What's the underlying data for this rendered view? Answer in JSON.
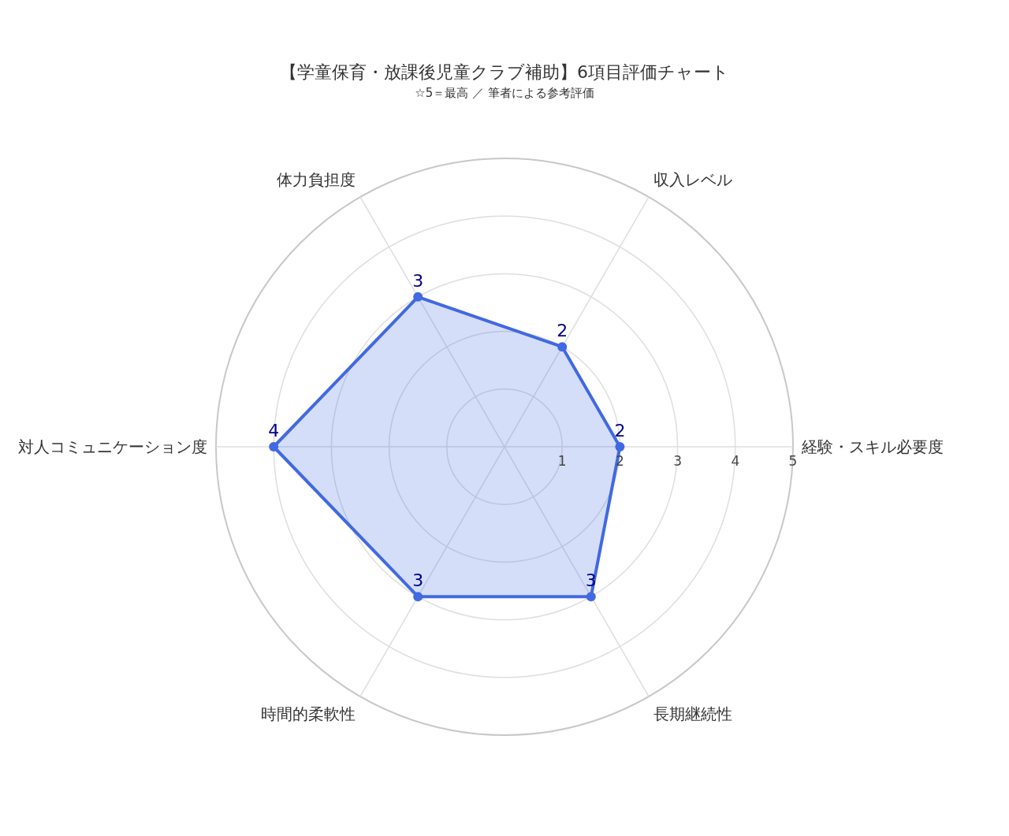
{
  "chart_data": {
    "type": "radar",
    "title": "【学童保育・放課後児童クラブ補助】6項目評価チャート",
    "subtitle": "☆5＝最高 ／ 筆者による参考評価",
    "categories": [
      "収入レベル",
      "経験・スキル必要度",
      "長期継続性",
      "時間的柔軟性",
      "対人コミュニケーション度",
      "体力負担度"
    ],
    "series": [
      {
        "color": "#4169e1",
        "values": [
          2,
          2,
          3,
          3,
          4,
          3
        ]
      }
    ],
    "ylim": [
      0,
      5
    ],
    "yticks": [
      1,
      2,
      3,
      4,
      5
    ],
    "grid": true,
    "data_labels": true,
    "marker": "circle"
  }
}
